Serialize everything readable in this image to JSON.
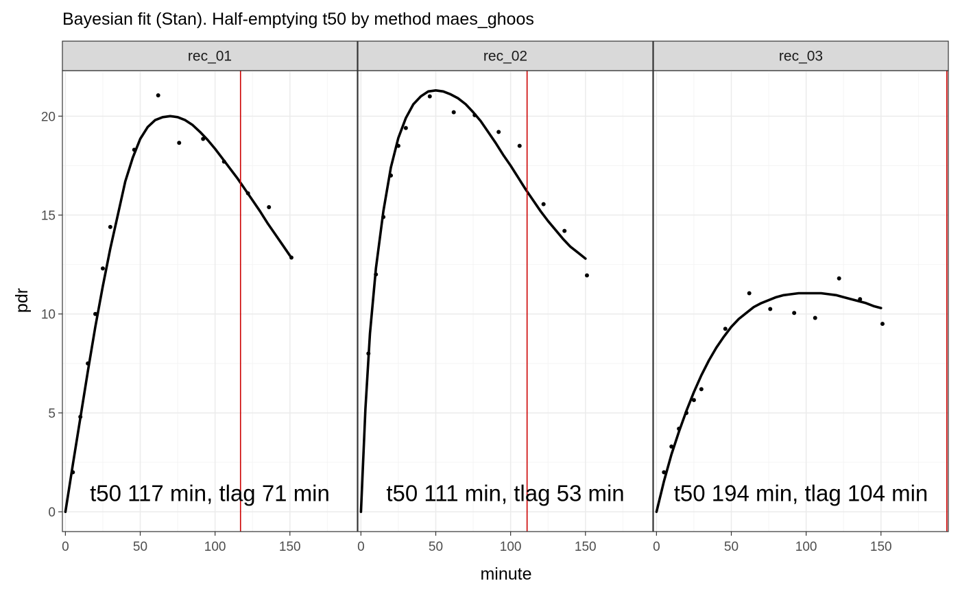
{
  "chart_data": {
    "type": "scatter",
    "title": "Bayesian fit (Stan). Half-emptying t50 by method maes_ghoos",
    "xlabel": "minute",
    "ylabel": "pdr",
    "xlim": [
      -2,
      195
    ],
    "ylim": [
      -1,
      22.3
    ],
    "x_ticks": [
      0,
      50,
      100,
      150
    ],
    "y_ticks": [
      0,
      5,
      10,
      15,
      20
    ],
    "grid": true,
    "panels": [
      {
        "label": "rec_01",
        "t50": 117,
        "annotation": "t50 117 min,  tlag 71 min",
        "points": [
          [
            5,
            2.0
          ],
          [
            10,
            4.8
          ],
          [
            15,
            7.5
          ],
          [
            20,
            10.0
          ],
          [
            25,
            12.3
          ],
          [
            30,
            14.4
          ],
          [
            46,
            18.3
          ],
          [
            62,
            21.05
          ],
          [
            76,
            18.65
          ],
          [
            92,
            18.85
          ],
          [
            106,
            17.7
          ],
          [
            122,
            16.1
          ],
          [
            136,
            15.4
          ],
          [
            151,
            12.85
          ]
        ],
        "fit": [
          [
            0,
            0
          ],
          [
            5,
            2.4
          ],
          [
            10,
            4.75
          ],
          [
            15,
            7.1
          ],
          [
            20,
            9.35
          ],
          [
            25,
            11.4
          ],
          [
            30,
            13.3
          ],
          [
            35,
            15.0
          ],
          [
            40,
            16.7
          ],
          [
            45,
            17.9
          ],
          [
            50,
            18.85
          ],
          [
            55,
            19.45
          ],
          [
            60,
            19.8
          ],
          [
            65,
            19.95
          ],
          [
            70,
            20.0
          ],
          [
            75,
            19.95
          ],
          [
            80,
            19.8
          ],
          [
            85,
            19.55
          ],
          [
            90,
            19.2
          ],
          [
            95,
            18.8
          ],
          [
            100,
            18.35
          ],
          [
            105,
            17.85
          ],
          [
            110,
            17.35
          ],
          [
            115,
            16.85
          ],
          [
            120,
            16.3
          ],
          [
            125,
            15.75
          ],
          [
            130,
            15.2
          ],
          [
            135,
            14.6
          ],
          [
            140,
            14.05
          ],
          [
            145,
            13.5
          ],
          [
            150,
            12.95
          ]
        ]
      },
      {
        "label": "rec_02",
        "t50": 111,
        "annotation": "t50 111 min,  tlag 53 min",
        "points": [
          [
            5,
            8.0
          ],
          [
            10,
            12.0
          ],
          [
            15,
            14.9
          ],
          [
            20,
            17.0
          ],
          [
            25,
            18.5
          ],
          [
            30,
            19.4
          ],
          [
            46,
            21.0
          ],
          [
            62,
            20.2
          ],
          [
            76,
            20.05
          ],
          [
            92,
            19.2
          ],
          [
            106,
            18.5
          ],
          [
            122,
            15.55
          ],
          [
            136,
            14.2
          ],
          [
            151,
            11.95
          ]
        ],
        "fit": [
          [
            0,
            0
          ],
          [
            3,
            5.2
          ],
          [
            6,
            9.0
          ],
          [
            10,
            12.3
          ],
          [
            15,
            15.2
          ],
          [
            20,
            17.4
          ],
          [
            25,
            18.9
          ],
          [
            30,
            19.9
          ],
          [
            35,
            20.6
          ],
          [
            40,
            21.0
          ],
          [
            45,
            21.25
          ],
          [
            50,
            21.3
          ],
          [
            55,
            21.25
          ],
          [
            60,
            21.1
          ],
          [
            65,
            20.9
          ],
          [
            70,
            20.6
          ],
          [
            75,
            20.2
          ],
          [
            80,
            19.75
          ],
          [
            85,
            19.2
          ],
          [
            90,
            18.65
          ],
          [
            95,
            18.05
          ],
          [
            100,
            17.5
          ],
          [
            105,
            16.9
          ],
          [
            110,
            16.3
          ],
          [
            115,
            15.75
          ],
          [
            120,
            15.2
          ],
          [
            125,
            14.7
          ],
          [
            130,
            14.25
          ],
          [
            135,
            13.8
          ],
          [
            140,
            13.4
          ],
          [
            145,
            13.1
          ],
          [
            150,
            12.8
          ]
        ]
      },
      {
        "label": "rec_03",
        "t50": 194,
        "annotation": "t50 194 min,  tlag 104 min",
        "points": [
          [
            5,
            2.0
          ],
          [
            10,
            3.3
          ],
          [
            15,
            4.2
          ],
          [
            20,
            5.0
          ],
          [
            25,
            5.65
          ],
          [
            30,
            6.2
          ],
          [
            46,
            9.25
          ],
          [
            62,
            11.05
          ],
          [
            76,
            10.25
          ],
          [
            92,
            10.05
          ],
          [
            106,
            9.8
          ],
          [
            122,
            11.8
          ],
          [
            136,
            10.75
          ],
          [
            151,
            9.5
          ]
        ],
        "fit": [
          [
            0,
            0
          ],
          [
            5,
            1.55
          ],
          [
            10,
            2.9
          ],
          [
            15,
            4.05
          ],
          [
            20,
            5.1
          ],
          [
            25,
            6.05
          ],
          [
            30,
            6.9
          ],
          [
            35,
            7.65
          ],
          [
            40,
            8.3
          ],
          [
            45,
            8.85
          ],
          [
            50,
            9.35
          ],
          [
            55,
            9.75
          ],
          [
            60,
            10.05
          ],
          [
            65,
            10.35
          ],
          [
            70,
            10.55
          ],
          [
            75,
            10.7
          ],
          [
            80,
            10.85
          ],
          [
            85,
            10.95
          ],
          [
            90,
            11.0
          ],
          [
            95,
            11.05
          ],
          [
            100,
            11.05
          ],
          [
            105,
            11.05
          ],
          [
            110,
            11.05
          ],
          [
            115,
            11.0
          ],
          [
            120,
            10.95
          ],
          [
            125,
            10.85
          ],
          [
            130,
            10.75
          ],
          [
            135,
            10.65
          ],
          [
            140,
            10.55
          ],
          [
            145,
            10.4
          ],
          [
            150,
            10.3
          ]
        ]
      }
    ]
  },
  "colors": {
    "t50_line": "#cc0000",
    "fit": "#000000",
    "points": "#000000",
    "strip_fill": "#d9d9d9",
    "grid_major": "#ebebeb",
    "grid_minor": "#f4f4f4",
    "panel_border": "#333333"
  }
}
